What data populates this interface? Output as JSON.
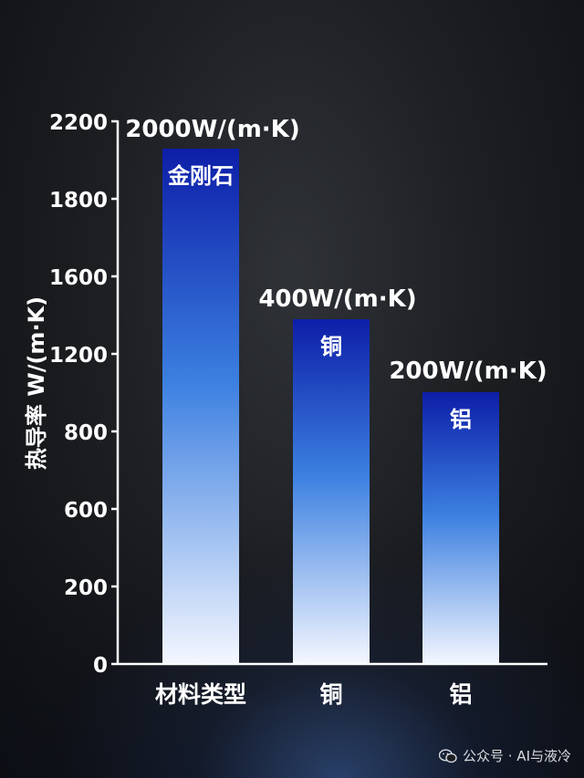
{
  "chart_data": {
    "type": "bar",
    "ylabel": "热导率 W/(m·K)",
    "y_ticks": [
      "0",
      "200",
      "600",
      "800",
      "1200",
      "1600",
      "1800",
      "2200"
    ],
    "categories": [
      "材料类型",
      "铜",
      "铝"
    ],
    "bar_names": [
      "金刚石",
      "铜",
      "铝"
    ],
    "value_labels": [
      "2000W/(m·K)",
      "400W/(m·K)",
      "200W/(m·K)"
    ],
    "values": [
      2000,
      400,
      200
    ],
    "grid": false,
    "colors": {
      "bar_top": "#0d1ea8",
      "bar_mid": "#3b7fe0",
      "bar_bottom": "#f4f7ff"
    }
  },
  "watermark": {
    "text": "公众号 · AI与液冷",
    "icon": "wechat-icon"
  }
}
